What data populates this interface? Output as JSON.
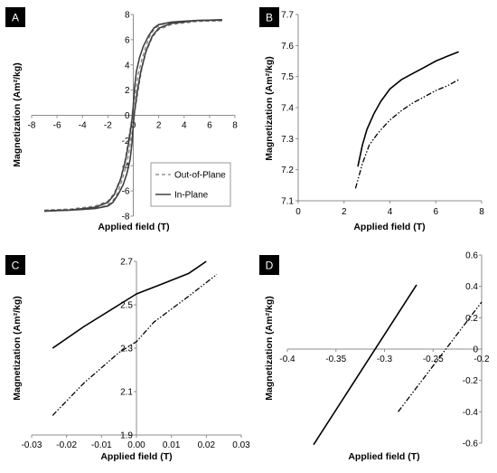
{
  "chart_data": [
    {
      "panel": "A",
      "type": "line",
      "xlabel": "Applied field (T)",
      "ylabel": "Magnetization (Am²/kg)",
      "xlim": [
        -8,
        8
      ],
      "ylim": [
        -8,
        8
      ],
      "xticks": [
        "-8",
        "-6",
        "-4",
        "-2",
        "0",
        "2",
        "4",
        "6",
        "8"
      ],
      "yticks": [
        "-8",
        "-6",
        "-4",
        "-2",
        "0",
        "2",
        "4",
        "6",
        "8"
      ],
      "legend": {
        "position": "bottom-right",
        "entries": [
          "Out-of-Plane",
          "In-Plane"
        ]
      },
      "series": [
        {
          "name": "Out-of-Plane",
          "style": "dashed",
          "color": "#808080",
          "branches": [
            {
              "x": [
                -7,
                -5,
                -3,
                -2,
                -1.5,
                -1,
                -0.7,
                -0.5,
                -0.3,
                -0.1,
                0,
                0.2,
                0.4,
                0.7,
                1,
                1.3,
                1.7,
                2.2,
                3,
                4,
                5,
                6,
                7
              ],
              "y": [
                -7.52,
                -7.45,
                -7.2,
                -6.8,
                -6.2,
                -5.0,
                -3.8,
                -2.7,
                -1.4,
                -0.2,
                0.6,
                2.0,
                3.3,
                4.5,
                5.5,
                6.3,
                6.9,
                7.2,
                7.35,
                7.42,
                7.45,
                7.48,
                7.5
              ]
            },
            {
              "x": [
                7,
                5,
                3,
                2,
                1.5,
                1,
                0.7,
                0.5,
                0.3,
                0.1,
                0,
                -0.2,
                -0.4,
                -0.7,
                -1,
                -1.3,
                -1.7,
                -2.2,
                -3,
                -4,
                -5,
                -6,
                -7
              ],
              "y": [
                7.5,
                7.45,
                7.2,
                6.8,
                6.2,
                5.0,
                3.8,
                2.7,
                1.4,
                0.2,
                -0.6,
                -2.0,
                -3.3,
                -4.5,
                -5.5,
                -6.3,
                -6.9,
                -7.2,
                -7.35,
                -7.42,
                -7.45,
                -7.48,
                -7.52
              ]
            }
          ]
        },
        {
          "name": "In-Plane",
          "style": "solid",
          "color": "#404040",
          "branches": [
            {
              "x": [
                -7,
                -5,
                -3,
                -2,
                -1.5,
                -1,
                -0.6,
                -0.3,
                -0.1,
                0,
                0.1,
                0.25,
                0.5,
                0.8,
                1.2,
                1.6,
                2,
                3,
                4,
                5,
                6,
                7
              ],
              "y": [
                -7.6,
                -7.52,
                -7.3,
                -6.9,
                -6.3,
                -5.1,
                -3.5,
                -1.8,
                -0.3,
                0.8,
                2.2,
                3.5,
                4.6,
                5.5,
                6.3,
                6.9,
                7.2,
                7.4,
                7.47,
                7.52,
                7.55,
                7.58
              ]
            },
            {
              "x": [
                7,
                5,
                3,
                2,
                1.5,
                1,
                0.6,
                0.3,
                0.1,
                0,
                -0.1,
                -0.25,
                -0.5,
                -0.8,
                -1.2,
                -1.6,
                -2,
                -3,
                -4,
                -5,
                -6,
                -7
              ],
              "y": [
                7.58,
                7.52,
                7.3,
                6.9,
                6.3,
                5.1,
                3.5,
                1.8,
                0.3,
                -0.8,
                -2.2,
                -3.5,
                -4.6,
                -5.5,
                -6.3,
                -6.9,
                -7.2,
                -7.4,
                -7.47,
                -7.52,
                -7.55,
                -7.6
              ]
            }
          ]
        }
      ]
    },
    {
      "panel": "B",
      "type": "line",
      "xlabel": "Applied field (T)",
      "ylabel": "Magnetization (Am²/kg)",
      "xlim": [
        0,
        8
      ],
      "ylim": [
        7.1,
        7.7
      ],
      "xticks": [
        "0",
        "2",
        "4",
        "6",
        "8"
      ],
      "yticks": [
        "7.1",
        "7.2",
        "7.3",
        "7.4",
        "7.5",
        "7.6",
        "7.7"
      ],
      "series": [
        {
          "name": "In-Plane",
          "style": "solid",
          "color": "#000000",
          "x": [
            2.6,
            2.8,
            3,
            3.3,
            3.6,
            4,
            4.5,
            5,
            5.5,
            6,
            6.5,
            7
          ],
          "y": [
            7.21,
            7.28,
            7.33,
            7.38,
            7.42,
            7.46,
            7.49,
            7.51,
            7.53,
            7.55,
            7.565,
            7.58
          ]
        },
        {
          "name": "Out-of-Plane",
          "style": "dashdot",
          "color": "#000000",
          "x": [
            2.5,
            2.8,
            3.1,
            3.5,
            4,
            4.5,
            5,
            5.5,
            6,
            6.5,
            7
          ],
          "y": [
            7.14,
            7.22,
            7.28,
            7.32,
            7.36,
            7.39,
            7.415,
            7.435,
            7.455,
            7.47,
            7.49
          ]
        }
      ]
    },
    {
      "panel": "C",
      "type": "line",
      "xlabel": "Applied field (T)",
      "ylabel": "Magnetization (Am²/kg)",
      "xlim": [
        -0.03,
        0.03
      ],
      "ylim": [
        1.9,
        2.7
      ],
      "xticks": [
        "-0.03",
        "-0.02",
        "-0.01",
        "0.00",
        "0.01",
        "0.02",
        "0.03"
      ],
      "yticks": [
        "1.9",
        "2.1",
        "2.3",
        "2.5",
        "2.7"
      ],
      "series": [
        {
          "name": "In-Plane",
          "style": "solid",
          "color": "#000000",
          "x": [
            -0.024,
            -0.015,
            -0.005,
            0,
            0.008,
            0.015,
            0.02
          ],
          "y": [
            2.3,
            2.4,
            2.5,
            2.55,
            2.6,
            2.645,
            2.7
          ]
        },
        {
          "name": "Out-of-Plane",
          "style": "dashdot",
          "color": "#000000",
          "x": [
            -0.024,
            -0.015,
            -0.005,
            0,
            0.005,
            0.015,
            0.023
          ],
          "y": [
            1.99,
            2.14,
            2.28,
            2.33,
            2.42,
            2.54,
            2.64
          ]
        }
      ]
    },
    {
      "panel": "D",
      "type": "line",
      "xlabel": "Applied field (T)",
      "ylabel": "Magnetization (Am²/kg)",
      "xlim": [
        -0.4,
        -0.2
      ],
      "ylim": [
        -0.6,
        0.6
      ],
      "xticks": [
        "-0.4",
        "-0.35",
        "-0.3",
        "-0.25",
        "-0.2"
      ],
      "yticks": [
        "-0.6",
        "-0.4",
        "-0.2",
        "0",
        "0.2",
        "0.4",
        "0.6"
      ],
      "series": [
        {
          "name": "In-Plane",
          "style": "solid",
          "color": "#000000",
          "x": [
            -0.373,
            -0.267
          ],
          "y": [
            -0.61,
            0.41
          ]
        },
        {
          "name": "Out-of-Plane",
          "style": "dashdot",
          "color": "#000000",
          "x": [
            -0.286,
            -0.2
          ],
          "y": [
            -0.4,
            0.3
          ]
        }
      ]
    }
  ]
}
